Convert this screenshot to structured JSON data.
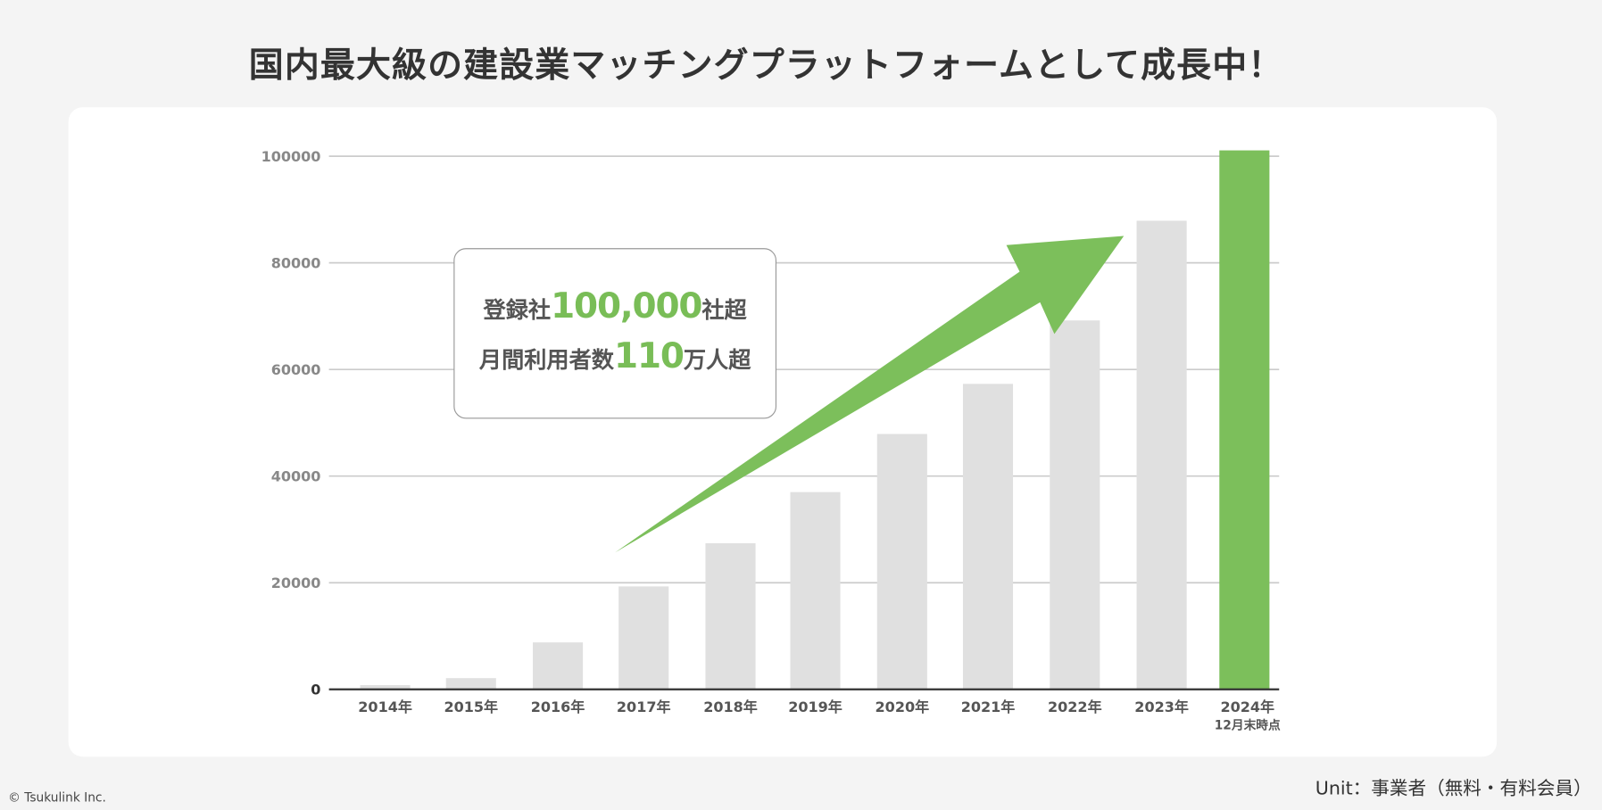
{
  "title": "国内最大級の建設業マッチングプラットフォームとして成長中！",
  "callout": {
    "line1_pre": "登録社",
    "line1_num": "100,000",
    "line1_post": "社超",
    "line2_pre": "月間利用者数",
    "line2_num": "110",
    "line2_post": "万人超"
  },
  "footer": {
    "copyright": "© Tsukulink Inc.",
    "unit": "Unit：事業者（無料・有料会員）"
  },
  "colors": {
    "bar": "#e0e0e0",
    "highlight": "#7cbf5b",
    "grid": "#cccccc",
    "axis": "#333333"
  },
  "chart_data": {
    "type": "bar",
    "title": "国内最大級の建設業マッチングプラットフォームとして成長中！",
    "categories": [
      "2014年",
      "2015年",
      "2016年",
      "2017年",
      "2018年",
      "2019年",
      "2020年",
      "2021年",
      "2022年",
      "2023年",
      "2024年"
    ],
    "category_sublabels": [
      "",
      "",
      "",
      "",
      "",
      "",
      "",
      "",
      "",
      "",
      "12月末時点"
    ],
    "values": [
      800,
      2100,
      8800,
      19300,
      27400,
      37000,
      47900,
      57300,
      69200,
      87900,
      101100
    ],
    "highlight_index": 10,
    "yticks": [
      "0",
      "20000",
      "40000",
      "60000",
      "80000",
      "100000"
    ],
    "ylim": [
      0,
      100000
    ],
    "grid": true,
    "xlabel": "",
    "ylabel": "",
    "annotation": "upward trend arrow"
  }
}
